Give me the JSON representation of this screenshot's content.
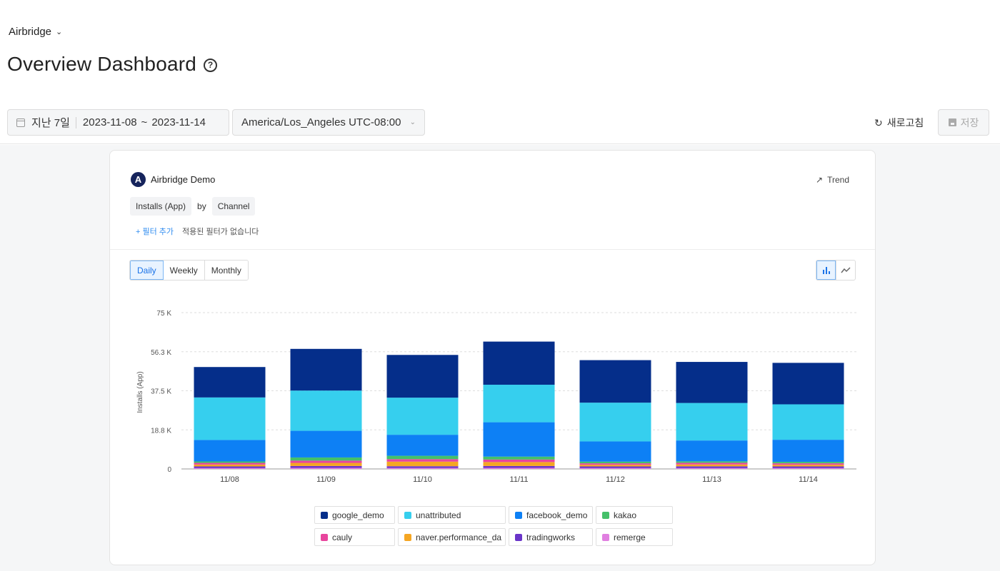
{
  "header": {
    "app_switcher": "Airbridge",
    "page_title": "Overview Dashboard",
    "help_icon": "?"
  },
  "toolbar": {
    "date_preset": "지난 7일",
    "date_start": "2023-11-08",
    "date_tilde": "~",
    "date_end": "2023-11-14",
    "timezone": "America/Los_Angeles UTC-08:00",
    "refresh_label": "새로고침",
    "save_label": "저장"
  },
  "card": {
    "app_name": "Airbridge Demo",
    "app_logo_letter": "A",
    "trend_label": "Trend",
    "metric": "Installs (App)",
    "by": "by",
    "group_by": "Channel",
    "add_filter": "+ 필터 추가",
    "no_filter": "적용된 필터가 없습니다",
    "periods": [
      {
        "label": "Daily",
        "active": true
      },
      {
        "label": "Weekly",
        "active": false
      },
      {
        "label": "Monthly",
        "active": false
      }
    ],
    "viz_modes": [
      {
        "icon": "bar-chart-icon",
        "active": true
      },
      {
        "icon": "line-chart-icon",
        "active": false
      }
    ]
  },
  "chart_data": {
    "type": "bar",
    "stacked": true,
    "ylabel": "Installs (App)",
    "ylim": [
      0,
      75000
    ],
    "yticks": [
      0,
      18750,
      37500,
      56250,
      75000
    ],
    "ytick_labels": [
      "0",
      "18.8 K",
      "37.5 K",
      "56.3 K",
      "75 K"
    ],
    "grid": "horizontal-dashed",
    "legend_position": "bottom",
    "categories": [
      "11/08",
      "11/09",
      "11/10",
      "11/11",
      "11/12",
      "11/13",
      "11/14"
    ],
    "series": [
      {
        "name": "remerge",
        "color": "#e07fe0",
        "values": [
          400,
          500,
          450,
          500,
          400,
          400,
          400
        ]
      },
      {
        "name": "tradingworks",
        "color": "#6a35c9",
        "values": [
          800,
          900,
          850,
          900,
          800,
          850,
          800
        ]
      },
      {
        "name": "naver.performance_da",
        "color": "#f5a623",
        "values": [
          900,
          1500,
          2200,
          1900,
          800,
          900,
          800
        ]
      },
      {
        "name": "cauly",
        "color": "#e8459d",
        "values": [
          800,
          1100,
          1200,
          1200,
          700,
          800,
          700
        ]
      },
      {
        "name": "kakao",
        "color": "#45c06a",
        "values": [
          700,
          1500,
          1600,
          1400,
          800,
          700,
          700
        ]
      },
      {
        "name": "facebook_demo",
        "color": "#0d80f5",
        "values": [
          10300,
          12800,
          10100,
          16500,
          9700,
          10000,
          10600
        ]
      },
      {
        "name": "unattributed",
        "color": "#36cfee",
        "values": [
          20400,
          19300,
          17800,
          18000,
          18600,
          18000,
          17000
        ]
      },
      {
        "name": "google_demo",
        "color": "#052e8a",
        "values": [
          14600,
          20000,
          20500,
          20700,
          20400,
          19700,
          19900
        ]
      }
    ]
  },
  "legend_order": [
    "google_demo",
    "unattributed",
    "facebook_demo",
    "kakao",
    "cauly",
    "naver.performance_da",
    "tradingworks",
    "remerge"
  ]
}
